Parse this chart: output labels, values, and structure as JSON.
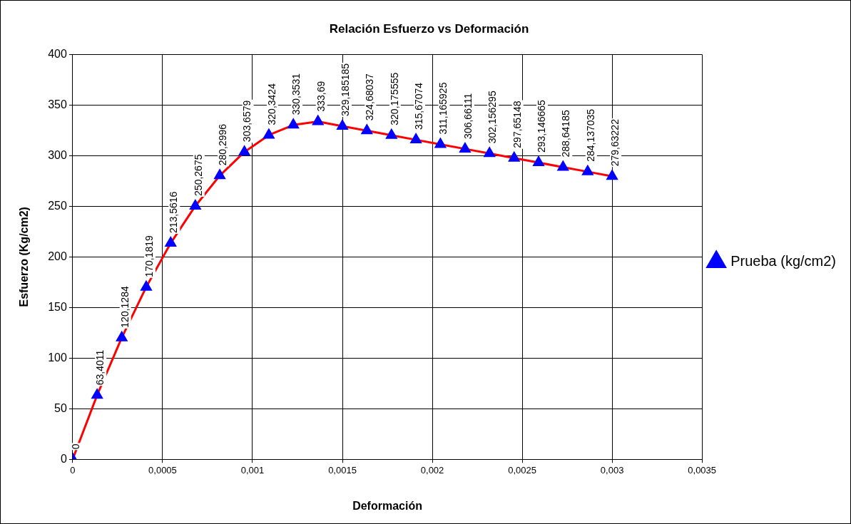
{
  "chart_data": {
    "type": "line",
    "title": "Relación Esfuerzo vs Deformación",
    "xlabel": "Deformación",
    "ylabel": "Esfuerzo (Kg/cm2)",
    "x": [
      0,
      0.000136,
      0.000273,
      0.000409,
      0.000545,
      0.000682,
      0.000818,
      0.000955,
      0.001091,
      0.001227,
      0.001364,
      0.0015,
      0.001636,
      0.001773,
      0.001909,
      0.002045,
      0.002182,
      0.002318,
      0.002455,
      0.002591,
      0.002727,
      0.002864,
      0.003
    ],
    "series": [
      {
        "name": "Prueba (kg/cm2)",
        "color": "#ff0000",
        "values": [
          0,
          63.4011,
          120.1284,
          170.1819,
          213.5616,
          250.2675,
          280.2996,
          303.6579,
          320.3424,
          330.3531,
          333.69,
          329.185185,
          324.68037,
          320.175555,
          315.67074,
          311.165925,
          306.66111,
          302.156295,
          297.65148,
          293.146665,
          288.64185,
          284.137035,
          279.63222
        ],
        "value_labels": [
          "0",
          "63,4011",
          "120,1284",
          "170,1819",
          "213,5616",
          "250,2675",
          "280,2996",
          "303,6579",
          "320,3424",
          "330,3531",
          "333,69",
          "329,185185",
          "324,68037",
          "320,175555",
          "315,67074",
          "311,165925",
          "306,66111",
          "302,156295",
          "297,65148",
          "293,146665",
          "288,64185",
          "284,137035",
          "279,63222"
        ]
      }
    ],
    "xlim": [
      0,
      0.0035
    ],
    "xticks": [
      0,
      {
        "value": 0.0005,
        "label": "0,0005"
      },
      {
        "value": 0.001,
        "label": "0,001"
      },
      {
        "value": 0.0015,
        "label": "0,0015"
      },
      {
        "value": 0.002,
        "label": "0,002"
      },
      {
        "value": 0.0025,
        "label": "0,0025"
      },
      {
        "value": 0.003,
        "label": "0,003"
      },
      {
        "value": 0.0035,
        "label": "0,0035"
      }
    ],
    "ylim": [
      0,
      400
    ],
    "yticks": [
      0,
      50,
      100,
      150,
      200,
      250,
      300,
      350,
      400
    ],
    "grid": true,
    "legend": "right",
    "marker": "triangle",
    "line_style": "solid"
  }
}
